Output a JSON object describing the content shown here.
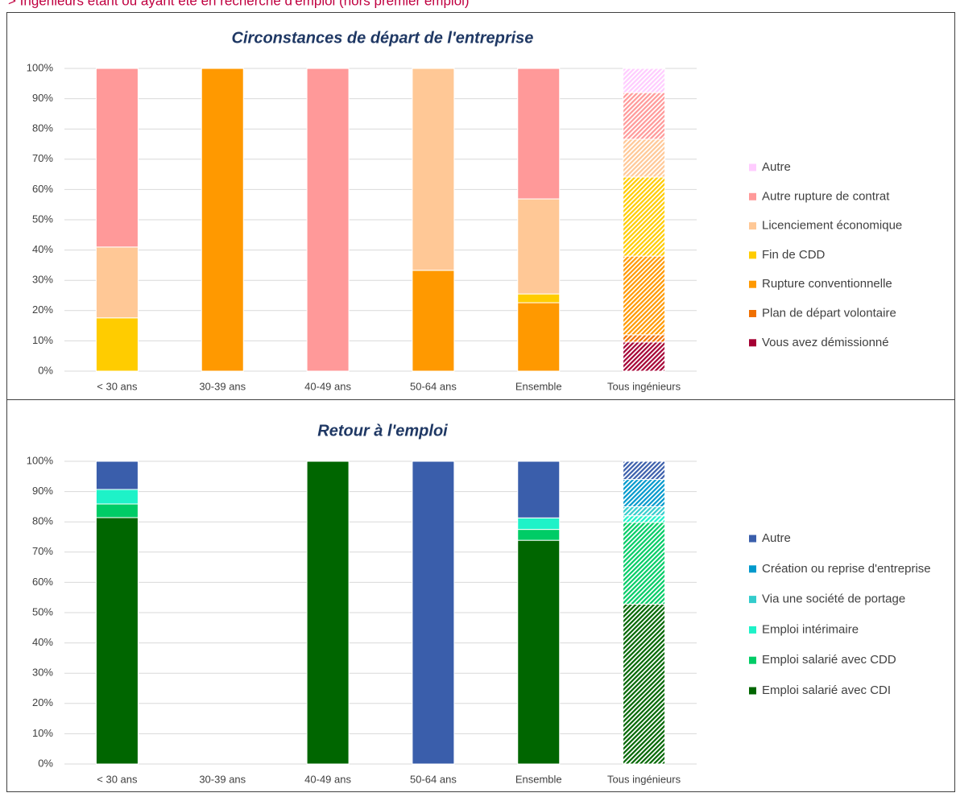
{
  "header": "> Ingénieurs étant ou ayant été en recherche d'emploi (hors premier emploi)",
  "chart_data": [
    {
      "type": "stacked_bar",
      "title": "Circonstances de départ de l'entreprise",
      "categories": [
        "< 30 ans",
        "30-39 ans",
        "40-49 ans",
        "50-64 ans",
        "Ensemble",
        "Tous ingénieurs"
      ],
      "series": [
        {
          "name": "Vous avez démissionné",
          "color": "#a50034",
          "values": [
            0,
            0,
            0,
            0,
            0,
            9.6
          ]
        },
        {
          "name": "Plan de départ volontaire",
          "color": "#f07000",
          "values": [
            0,
            0,
            0,
            0,
            0,
            2.4
          ]
        },
        {
          "name": "Rupture conventionnelle",
          "color": "#ff9900",
          "values": [
            0,
            100,
            0,
            33.3,
            22.6,
            26
          ]
        },
        {
          "name": "Fin de CDD",
          "color": "#ffcc00",
          "values": [
            17.6,
            0,
            0,
            0,
            2.9,
            26.1
          ]
        },
        {
          "name": "Licenciement économique",
          "color": "#ffc896",
          "values": [
            23.4,
            0,
            0,
            66.7,
            31.4,
            12.5
          ]
        },
        {
          "name": "Autre rupture de contrat",
          "color": "#ff9999",
          "values": [
            59,
            0,
            100,
            0,
            43.1,
            15.4
          ]
        },
        {
          "name": "Autre",
          "color": "#ffccff",
          "values": [
            0,
            0,
            0,
            0,
            0,
            8
          ]
        }
      ],
      "ylim": [
        0,
        100
      ],
      "yticks": [
        {
          "value": 0,
          "label": "0%"
        },
        {
          "value": 10,
          "label": "10%"
        },
        {
          "value": 20,
          "label": "20%"
        },
        {
          "value": 30,
          "label": "30%"
        },
        {
          "value": 40,
          "label": "40%"
        },
        {
          "value": 50,
          "label": "50%"
        },
        {
          "value": 60,
          "label": "60%"
        },
        {
          "value": 70,
          "label": "70%"
        },
        {
          "value": 80,
          "label": "80%"
        },
        {
          "value": 90,
          "label": "90%"
        },
        {
          "value": 100,
          "label": "100%"
        }
      ],
      "grid": true,
      "legend": "right"
    },
    {
      "type": "stacked_bar",
      "title": "Retour à l'emploi",
      "categories": [
        "< 30 ans",
        "30-39 ans",
        "40-49 ans",
        "50-64 ans",
        "Ensemble",
        "Tous ingénieurs"
      ],
      "series": [
        {
          "name": "Emploi salarié avec CDI",
          "color": "#006600",
          "values": [
            81.4,
            0,
            100,
            0,
            73.9,
            52.8
          ]
        },
        {
          "name": "Emploi salarié avec CDD",
          "color": "#00cc66",
          "values": [
            4.5,
            0,
            0,
            0,
            3.6,
            27
          ]
        },
        {
          "name": "Emploi intérimaire",
          "color": "#1ef2c8",
          "values": [
            4.8,
            0,
            0,
            0,
            3.8,
            2.2
          ]
        },
        {
          "name": "Via une société de portage",
          "color": "#33cccc",
          "values": [
            0,
            0,
            0,
            0,
            0,
            3
          ]
        },
        {
          "name": "Création ou reprise d'entreprise",
          "color": "#0099cc",
          "values": [
            0,
            0,
            0,
            0,
            0,
            9
          ]
        },
        {
          "name": "Autre",
          "color": "#3a5eab",
          "values": [
            9.3,
            0,
            0,
            100,
            18.7,
            6
          ]
        }
      ],
      "ylim": [
        0,
        100
      ],
      "yticks": [
        {
          "value": 0,
          "label": "0%"
        },
        {
          "value": 10,
          "label": "10%"
        },
        {
          "value": 20,
          "label": "20%"
        },
        {
          "value": 30,
          "label": "30%"
        },
        {
          "value": 40,
          "label": "40%"
        },
        {
          "value": 50,
          "label": "50%"
        },
        {
          "value": 60,
          "label": "60%"
        },
        {
          "value": 70,
          "label": "70%"
        },
        {
          "value": 80,
          "label": "80%"
        },
        {
          "value": 90,
          "label": "90%"
        },
        {
          "value": 100,
          "label": "100%"
        }
      ],
      "grid": true,
      "legend": "right"
    }
  ]
}
